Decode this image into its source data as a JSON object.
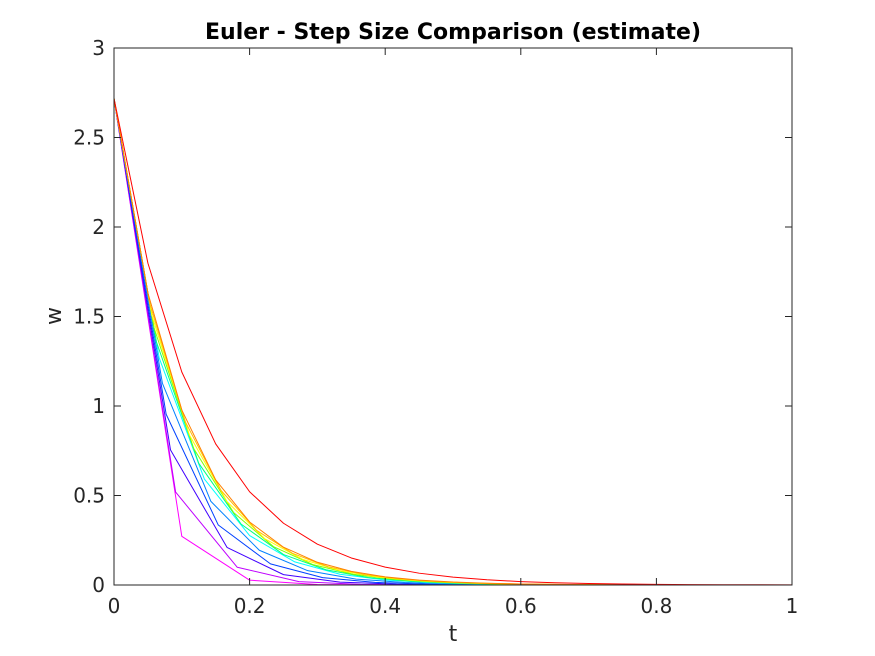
{
  "chart_data": {
    "type": "line",
    "title": "Euler - Step Size Comparison (estimate)",
    "xlabel": "t",
    "ylabel": "w",
    "xlim": [
      0,
      1
    ],
    "ylim": [
      0,
      3
    ],
    "xticks": [
      "0",
      "0.2",
      "0.4",
      "0.6",
      "0.8",
      "1"
    ],
    "yticks": [
      "0",
      "0.5",
      "1",
      "1.5",
      "2",
      "2.5",
      "3"
    ],
    "grid": false,
    "legend": "none",
    "series": [
      {
        "color": "#ff00ff",
        "x": [
          0,
          0.1,
          0.2,
          0.3,
          0.4,
          0.5,
          0.6,
          0.7,
          0.8,
          0.9,
          1.0
        ],
        "y": [
          2.718,
          0.272,
          0.027,
          0.003,
          0.0003,
          0.0,
          0.0,
          0.0,
          0.0,
          0.0,
          0.0
        ]
      },
      {
        "color": "#bf00ff",
        "x": [
          0,
          0.0909,
          0.1818,
          0.2727,
          0.3636,
          0.4545,
          0.5455,
          0.6364,
          0.7273,
          0.8182,
          0.9091,
          1.0
        ],
        "y": [
          2.718,
          0.519,
          0.099,
          0.019,
          0.0036,
          0.0007,
          0.0001,
          0.0,
          0.0,
          0.0,
          0.0,
          0.0
        ]
      },
      {
        "color": "#4000ff",
        "x": [
          0,
          0.0833,
          0.1667,
          0.25,
          0.3333,
          0.4167,
          0.5,
          0.5833,
          0.6667,
          0.75,
          0.8333,
          0.9167,
          1.0
        ],
        "y": [
          2.718,
          0.755,
          0.21,
          0.058,
          0.016,
          0.0045,
          0.0012,
          0.0003,
          0.0,
          0.0,
          0.0,
          0.0,
          0.0
        ]
      },
      {
        "color": "#0040ff",
        "x": [
          0,
          0.0769,
          0.1538,
          0.2308,
          0.3077,
          0.3846,
          0.4615,
          0.5385,
          0.6154,
          0.6923,
          0.7692,
          0.8462,
          0.9231,
          1.0
        ],
        "y": [
          2.718,
          0.954,
          0.335,
          0.118,
          0.041,
          0.0145,
          0.0051,
          0.0018,
          0.0006,
          0.0002,
          0.0,
          0.0,
          0.0,
          0.0
        ]
      },
      {
        "color": "#0080ff",
        "x": [
          0,
          0.0714,
          0.1429,
          0.2143,
          0.2857,
          0.3571,
          0.4286,
          0.5,
          0.5714,
          0.6429,
          0.7143,
          0.7857,
          0.8571,
          0.9286,
          1.0
        ],
        "y": [
          2.718,
          1.127,
          0.467,
          0.194,
          0.08,
          0.033,
          0.0138,
          0.0057,
          0.0024,
          0.001,
          0.0004,
          0.0,
          0.0,
          0.0,
          0.0
        ]
      },
      {
        "color": "#00ffff",
        "x": [
          0,
          0.0667,
          0.1333,
          0.2,
          0.2667,
          0.3333,
          0.4,
          0.4667,
          0.5333,
          0.6,
          0.6667,
          0.7333,
          0.8,
          0.8667,
          0.9333,
          1.0
        ],
        "y": [
          2.718,
          1.268,
          0.592,
          0.276,
          0.129,
          0.06,
          0.028,
          0.013,
          0.0061,
          0.0029,
          0.0013,
          0.0006,
          0.0,
          0.0,
          0.0,
          0.0
        ]
      },
      {
        "color": "#00ff80",
        "x": [
          0,
          0.0625,
          0.125,
          0.1875,
          0.25,
          0.3125,
          0.375,
          0.4375,
          0.5,
          0.5625,
          0.625,
          0.6875,
          0.75,
          0.8125,
          0.875,
          0.9375,
          1.0
        ],
        "y": [
          2.718,
          1.359,
          0.68,
          0.34,
          0.17,
          0.085,
          0.042,
          0.021,
          0.0106,
          0.0053,
          0.0027,
          0.0013,
          0.0007,
          0.0,
          0.0,
          0.0,
          0.0
        ]
      },
      {
        "color": "#80ff00",
        "x": [
          0,
          0.0588,
          0.1176,
          0.1765,
          0.2353,
          0.2941,
          0.3529,
          0.4118,
          0.4706,
          0.5294,
          0.5882,
          0.6471,
          0.7059,
          0.7647,
          0.8235,
          0.8824,
          0.9412,
          1.0
        ],
        "y": [
          2.718,
          1.44,
          0.762,
          0.404,
          0.214,
          0.113,
          0.06,
          0.032,
          0.0168,
          0.0089,
          0.0047,
          0.0025,
          0.0013,
          0.0007,
          0.0,
          0.0,
          0.0,
          0.0
        ]
      },
      {
        "color": "#ffff00",
        "x": [
          0,
          0.0556,
          0.1111,
          0.1667,
          0.2222,
          0.2778,
          0.3333,
          0.3889,
          0.4444,
          0.5,
          0.5556,
          0.6111,
          0.6667,
          0.7222,
          0.7778,
          0.8333,
          0.8889,
          0.9444,
          1.0
        ],
        "y": [
          2.718,
          1.51,
          0.839,
          0.466,
          0.259,
          0.144,
          0.08,
          0.044,
          0.0247,
          0.0137,
          0.0076,
          0.0042,
          0.0024,
          0.0013,
          0.0007,
          0.0,
          0.0,
          0.0,
          0.0
        ]
      },
      {
        "color": "#ffbf00",
        "x": [
          0,
          0.0526,
          0.1053,
          0.1579,
          0.2105,
          0.2632,
          0.3158,
          0.3684,
          0.4211,
          0.4737,
          0.5263,
          0.5789,
          0.6316,
          0.6842,
          0.7368,
          0.7895,
          0.8421,
          0.8947,
          0.9474,
          1.0
        ],
        "y": [
          2.718,
          1.574,
          0.911,
          0.528,
          0.305,
          0.177,
          0.102,
          0.059,
          0.0343,
          0.0199,
          0.0115,
          0.0067,
          0.0039,
          0.0022,
          0.0013,
          0.0007,
          0.0,
          0.0,
          0.0,
          0.0
        ]
      },
      {
        "color": "#ff8000",
        "x": [
          0,
          0.05,
          0.1,
          0.15,
          0.2,
          0.25,
          0.3,
          0.35,
          0.4,
          0.45,
          0.5,
          0.55,
          0.6,
          0.65,
          0.7,
          0.75,
          0.8,
          0.85,
          0.9,
          0.95,
          1.0
        ],
        "y": [
          2.718,
          1.631,
          0.978,
          0.587,
          0.352,
          0.211,
          0.127,
          0.076,
          0.0456,
          0.0274,
          0.0164,
          0.0099,
          0.0059,
          0.0035,
          0.0021,
          0.0013,
          0.0008,
          0.0,
          0.0,
          0.0,
          0.0
        ]
      },
      {
        "color": "#ff0000",
        "x": [
          0,
          0.05,
          0.1,
          0.15,
          0.2,
          0.25,
          0.3,
          0.35,
          0.4,
          0.45,
          0.5,
          0.55,
          0.6,
          0.65,
          0.7,
          0.75,
          0.8,
          0.85,
          0.9,
          0.95,
          1.0
        ],
        "y": [
          2.718,
          1.798,
          1.19,
          0.788,
          0.521,
          0.345,
          0.228,
          0.151,
          0.1,
          0.066,
          0.044,
          0.029,
          0.019,
          0.0127,
          0.0084,
          0.0056,
          0.0037,
          0.0024,
          0.0016,
          0.0011,
          0.0007
        ]
      }
    ]
  }
}
